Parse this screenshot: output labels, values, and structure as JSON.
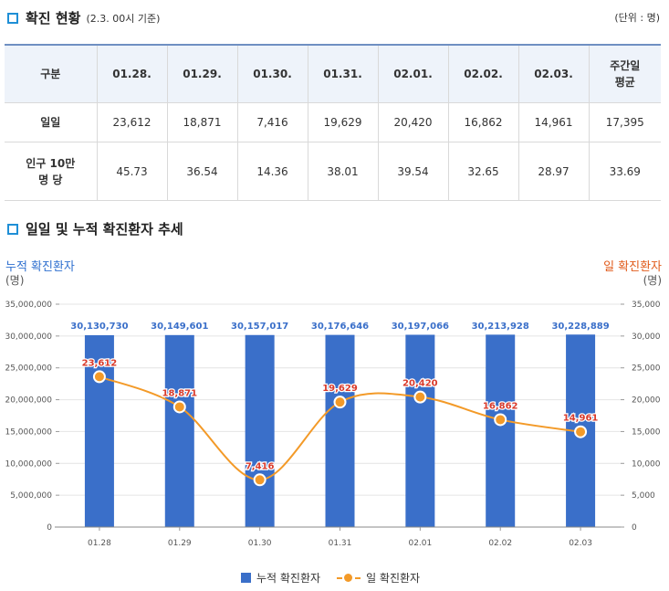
{
  "section1": {
    "title": "확진 현황",
    "subtitle": "(2.3. 00시 기준)",
    "unit": "(단위 : 명)"
  },
  "table": {
    "headers": [
      "구분",
      "01.28.",
      "01.29.",
      "01.30.",
      "01.31.",
      "02.01.",
      "02.02.",
      "02.03.",
      "주간일\n평균"
    ],
    "rows": [
      {
        "label": "일일",
        "values": [
          "23,612",
          "18,871",
          "7,416",
          "19,629",
          "20,420",
          "16,862",
          "14,961",
          "17,395"
        ]
      },
      {
        "label": "인구 10만\n명 당",
        "values": [
          "45.73",
          "36.54",
          "14.36",
          "38.01",
          "39.54",
          "32.65",
          "28.97",
          "33.69"
        ]
      }
    ]
  },
  "section2": {
    "title": "일일 및 누적 확진환자 추세"
  },
  "chart_data": {
    "type": "bar+line",
    "categories": [
      "01.28",
      "01.29",
      "01.30",
      "01.31",
      "02.01",
      "02.02",
      "02.03"
    ],
    "series": [
      {
        "name": "누적 확진환자",
        "type": "bar",
        "axis": "left",
        "values": [
          30130730,
          30149601,
          30157017,
          30176646,
          30197066,
          30213928,
          30228889
        ],
        "labels": [
          "30,130,730",
          "30,149,601",
          "30,157,017",
          "30,176,646",
          "30,197,066",
          "30,213,928",
          "30,228,889"
        ],
        "color": "#3a6fc9"
      },
      {
        "name": "일 확진환자",
        "type": "line",
        "axis": "right",
        "values": [
          23612,
          18871,
          7416,
          19629,
          20420,
          16862,
          14961
        ],
        "labels": [
          "23,612",
          "18,871",
          "7,416",
          "19,629",
          "20,420",
          "16,862",
          "14,961"
        ],
        "color": "#f39a28"
      }
    ],
    "left_axis": {
      "title": "누적 확진환자",
      "unit": "(명)",
      "ylim": [
        0,
        35000000
      ],
      "ticks": [
        0,
        5000000,
        10000000,
        15000000,
        20000000,
        25000000,
        30000000,
        35000000
      ],
      "tick_labels": [
        "0",
        "5,000,000",
        "10,000,000",
        "15,000,000",
        "20,000,000",
        "25,000,000",
        "30,000,000",
        "35,000,000"
      ]
    },
    "right_axis": {
      "title": "일 확진환자",
      "unit": "(명)",
      "ylim": [
        0,
        35000
      ],
      "ticks": [
        0,
        5000,
        10000,
        15000,
        20000,
        25000,
        30000,
        35000
      ],
      "tick_labels": [
        "0",
        "5,000",
        "10,000",
        "15,000",
        "20,000",
        "25,000",
        "30,000",
        "35,000"
      ]
    },
    "grid": true,
    "legend": "bottom",
    "colors": {
      "bar_label": "#3a6fc9",
      "line_label": "#d93a2b",
      "left_axis_title": "#2e6fcf",
      "right_axis_title": "#e05a1a"
    }
  }
}
